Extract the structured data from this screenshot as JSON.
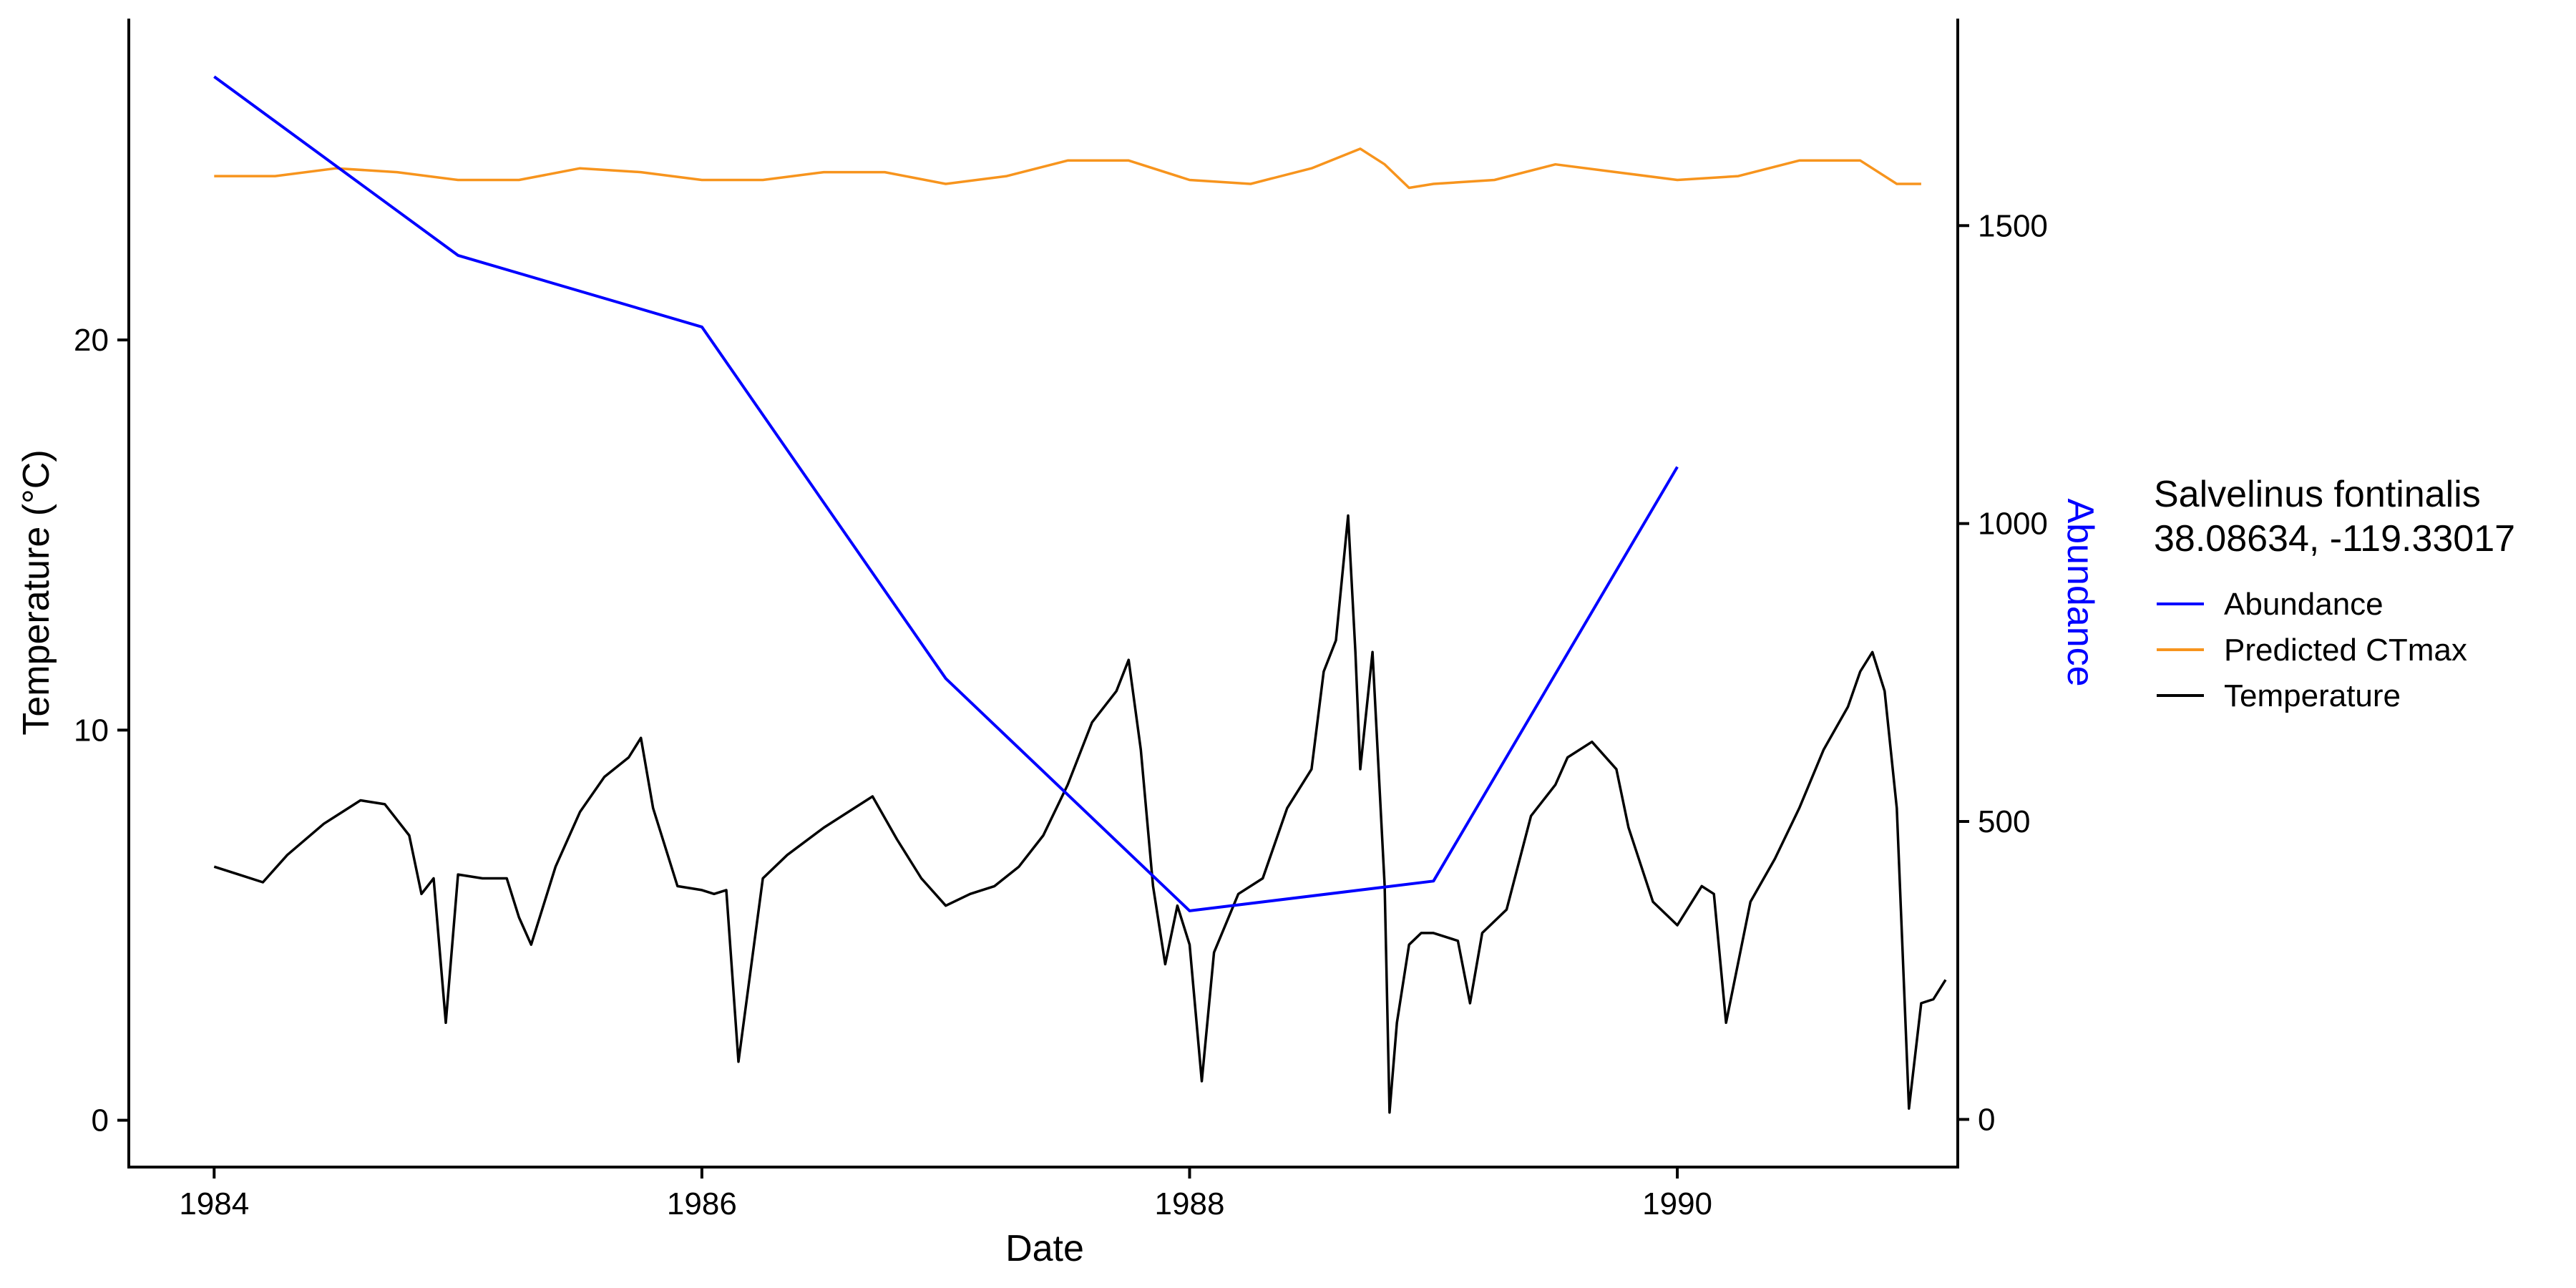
{
  "chart_data": {
    "type": "line",
    "xlabel": "Date",
    "ylabel_left": "Temperature (°C)",
    "ylabel_right": "Abundance",
    "x_range": [
      1983.65,
      1991.15
    ],
    "y_left_range": [
      -1.2,
      28.2
    ],
    "y_right_range": [
      -80,
      1845
    ],
    "x_ticks": [
      {
        "value": 1984,
        "label": "1984"
      },
      {
        "value": 1986,
        "label": "1986"
      },
      {
        "value": 1988,
        "label": "1988"
      },
      {
        "value": 1990,
        "label": "1990"
      }
    ],
    "y_left_ticks": [
      {
        "value": 0,
        "label": "0"
      },
      {
        "value": 10,
        "label": "10"
      },
      {
        "value": 20,
        "label": "20"
      }
    ],
    "y_right_ticks": [
      {
        "value": 0,
        "label": "0"
      },
      {
        "value": 500,
        "label": "500"
      },
      {
        "value": 1000,
        "label": "1000"
      },
      {
        "value": 1500,
        "label": "1500"
      }
    ],
    "grid": false,
    "legend": {
      "title": [
        "Salvelinus fontinalis",
        "38.08634, -119.33017"
      ],
      "placement": "right"
    },
    "series": [
      {
        "name": "Abundance",
        "axis": "right",
        "color": "#0000ff",
        "x": [
          1984,
          1985,
          1986,
          1987,
          1988,
          1989,
          1990
        ],
        "values": [
          1750,
          1450,
          1330,
          740,
          350,
          400,
          1095
        ]
      },
      {
        "name": "Predicted CTmax",
        "axis": "left",
        "color": "#f7941d",
        "x": [
          1984.0,
          1984.25,
          1984.5,
          1984.75,
          1985.0,
          1985.25,
          1985.5,
          1985.75,
          1986.0,
          1986.25,
          1986.5,
          1986.75,
          1987.0,
          1987.25,
          1987.5,
          1987.75,
          1988.0,
          1988.25,
          1988.5,
          1988.7,
          1988.8,
          1988.9,
          1989.0,
          1989.25,
          1989.5,
          1989.75,
          1990.0,
          1990.25,
          1990.5,
          1990.75,
          1990.9,
          1991.0
        ],
        "values": [
          24.2,
          24.2,
          24.4,
          24.3,
          24.1,
          24.1,
          24.4,
          24.3,
          24.1,
          24.1,
          24.3,
          24.3,
          24.0,
          24.2,
          24.6,
          24.6,
          24.1,
          24.0,
          24.4,
          24.9,
          24.5,
          23.9,
          24.0,
          24.1,
          24.5,
          24.3,
          24.1,
          24.2,
          24.6,
          24.6,
          24.0,
          24.0
        ]
      },
      {
        "name": "Temperature",
        "axis": "left",
        "color": "#000000",
        "x": [
          1984.0,
          1984.1,
          1984.2,
          1984.3,
          1984.45,
          1984.6,
          1984.7,
          1984.8,
          1984.85,
          1984.9,
          1984.95,
          1985.0,
          1985.1,
          1985.2,
          1985.25,
          1985.3,
          1985.4,
          1985.5,
          1985.6,
          1985.7,
          1985.75,
          1985.8,
          1985.9,
          1986.0,
          1986.05,
          1986.1,
          1986.15,
          1986.25,
          1986.35,
          1986.5,
          1986.65,
          1986.7,
          1986.8,
          1986.9,
          1987.0,
          1987.1,
          1987.2,
          1987.3,
          1987.4,
          1987.5,
          1987.6,
          1987.7,
          1987.75,
          1987.8,
          1987.85,
          1987.9,
          1987.95,
          1988.0,
          1988.05,
          1988.1,
          1988.2,
          1988.3,
          1988.4,
          1988.5,
          1988.55,
          1988.6,
          1988.65,
          1988.68,
          1988.7,
          1988.75,
          1988.8,
          1988.82,
          1988.85,
          1988.9,
          1988.95,
          1989.0,
          1989.1,
          1989.15,
          1989.2,
          1989.3,
          1989.4,
          1989.5,
          1989.55,
          1989.65,
          1989.75,
          1989.8,
          1989.9,
          1990.0,
          1990.1,
          1990.15,
          1990.2,
          1990.3,
          1990.4,
          1990.5,
          1990.6,
          1990.7,
          1990.75,
          1990.8,
          1990.85,
          1990.9,
          1990.95,
          1991.0,
          1991.05,
          1991.1
        ],
        "values": [
          6.5,
          6.3,
          6.1,
          6.8,
          7.6,
          8.2,
          8.1,
          7.3,
          5.8,
          6.2,
          2.5,
          6.3,
          6.2,
          6.2,
          5.2,
          4.5,
          6.5,
          7.9,
          8.8,
          9.3,
          9.8,
          8.0,
          6.0,
          5.9,
          5.8,
          5.9,
          1.5,
          6.2,
          6.8,
          7.5,
          8.1,
          8.3,
          7.2,
          6.2,
          5.5,
          5.8,
          6.0,
          6.5,
          7.3,
          8.6,
          10.2,
          11.0,
          11.8,
          9.5,
          6.0,
          4.0,
          5.5,
          4.5,
          1.0,
          4.3,
          5.8,
          6.2,
          8.0,
          9.0,
          11.5,
          12.3,
          15.5,
          12.0,
          9.0,
          12.0,
          6.0,
          0.2,
          2.5,
          4.5,
          4.8,
          4.8,
          4.6,
          3.0,
          4.8,
          5.4,
          7.8,
          8.6,
          9.3,
          9.7,
          9.0,
          7.5,
          5.6,
          5.0,
          6.0,
          5.8,
          2.5,
          5.6,
          6.7,
          8.0,
          9.5,
          10.6,
          11.5,
          12.0,
          11.0,
          8.0,
          0.3,
          3.0,
          3.1,
          3.6
        ]
      }
    ]
  }
}
